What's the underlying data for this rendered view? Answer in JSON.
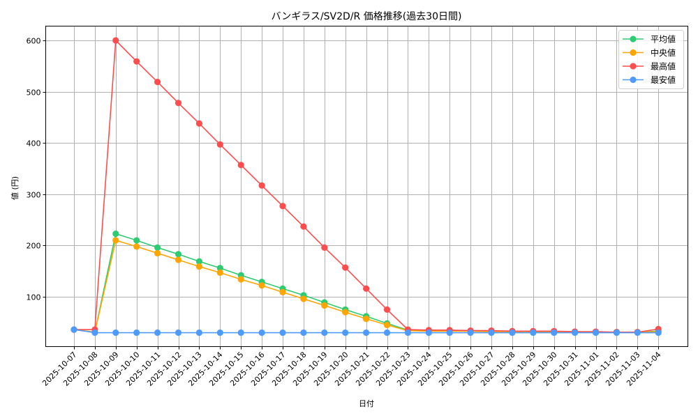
{
  "chart_data": {
    "type": "line",
    "title": "バンギラス/SV2D/R 価格推移(過去30日間)",
    "xlabel": "日付",
    "ylabel": "値 (円)",
    "ylim": [
      3.5,
      628
    ],
    "yticks": [
      100,
      200,
      300,
      400,
      500,
      600
    ],
    "grid": true,
    "legend_position": "upper right",
    "categories": [
      "2025-10-07",
      "2025-10-08",
      "2025-10-09",
      "2025-10-10",
      "2025-10-11",
      "2025-10-12",
      "2025-10-13",
      "2025-10-14",
      "2025-10-15",
      "2025-10-16",
      "2025-10-17",
      "2025-10-18",
      "2025-10-19",
      "2025-10-20",
      "2025-10-21",
      "2025-10-22",
      "2025-10-23",
      "2025-10-24",
      "2025-10-25",
      "2025-10-26",
      "2025-10-27",
      "2025-10-28",
      "2025-10-29",
      "2025-10-30",
      "2025-10-31",
      "2025-11-01",
      "2025-11-02",
      "2025-11-03",
      "2025-11-04"
    ],
    "series": [
      {
        "name": "平均値",
        "color": "#2ecc71",
        "values": [
          36,
          31,
          223,
          210,
          196,
          183,
          169,
          156,
          142,
          129,
          116,
          103,
          89,
          75,
          62,
          48,
          35,
          34,
          34,
          33,
          33,
          33,
          32,
          32,
          32,
          31,
          31,
          31,
          33
        ]
      },
      {
        "name": "中央値",
        "color": "#ffa500",
        "values": [
          36,
          31,
          210,
          198,
          185,
          172,
          159,
          147,
          134,
          122,
          109,
          96,
          83,
          70,
          57,
          45,
          34,
          33,
          33,
          33,
          32,
          32,
          32,
          32,
          31,
          31,
          31,
          31,
          32
        ]
      },
      {
        "name": "最高値",
        "color": "#ff4d4d",
        "values": [
          36,
          36,
          600,
          559,
          519,
          478,
          438,
          397,
          357,
          317,
          277,
          237,
          196,
          157,
          116,
          75,
          36,
          35,
          35,
          34,
          34,
          33,
          33,
          33,
          32,
          32,
          31,
          31,
          37
        ]
      },
      {
        "name": "最安値",
        "color": "#4d9bff",
        "values": [
          36,
          30,
          30,
          30,
          30,
          30,
          30,
          30,
          30,
          30,
          30,
          30,
          30,
          30,
          30,
          30,
          30,
          30,
          30,
          30,
          30,
          30,
          30,
          30,
          30,
          30,
          30,
          30,
          30
        ]
      }
    ]
  }
}
